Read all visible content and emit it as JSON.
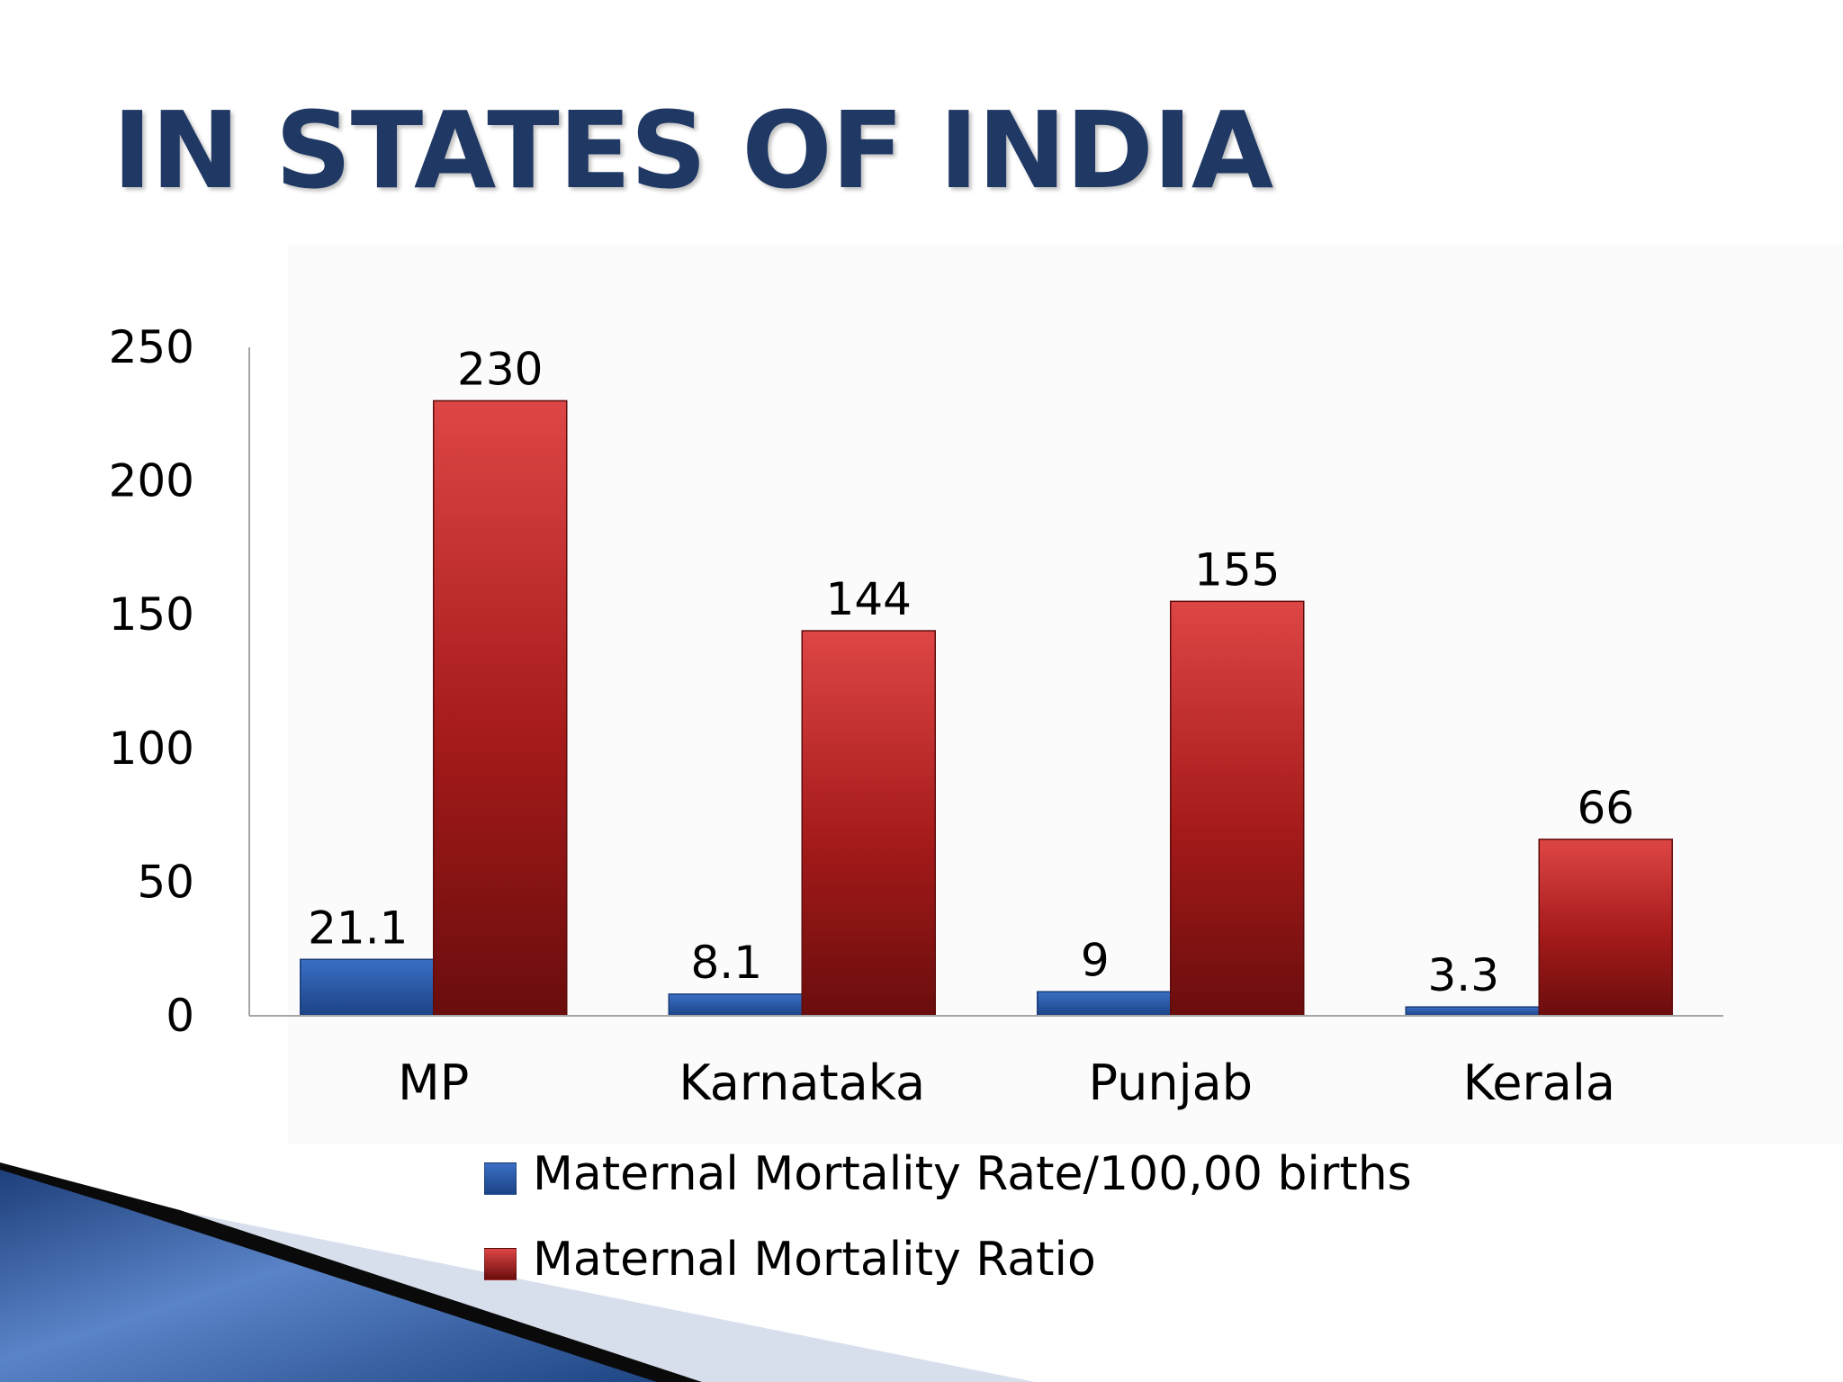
{
  "slide": {
    "title": "IN STATES OF INDIA"
  },
  "chart_data": {
    "type": "bar",
    "title": "",
    "xlabel": "",
    "ylabel": "",
    "categories": [
      "MP",
      "Karnataka",
      "Punjab",
      "Kerala"
    ],
    "series": [
      {
        "name": "Maternal Mortality Rate/100,00 births",
        "values": [
          21.1,
          8.1,
          9,
          3.3
        ],
        "labels": [
          "21.1",
          "8.1",
          "9",
          "3.3"
        ],
        "color": "#2e5fae"
      },
      {
        "name": "Maternal Mortality Ratio",
        "values": [
          230,
          144,
          155,
          66
        ],
        "labels": [
          "230",
          "144",
          "155",
          "66"
        ],
        "color": "#b22222"
      }
    ],
    "ylim": [
      0,
      250
    ],
    "yticks": [
      0,
      50,
      100,
      150,
      200,
      250
    ],
    "ytick_labels": [
      "0",
      "50",
      "100",
      "150",
      "200",
      "250"
    ],
    "grid": false,
    "legend_position": "bottom"
  }
}
